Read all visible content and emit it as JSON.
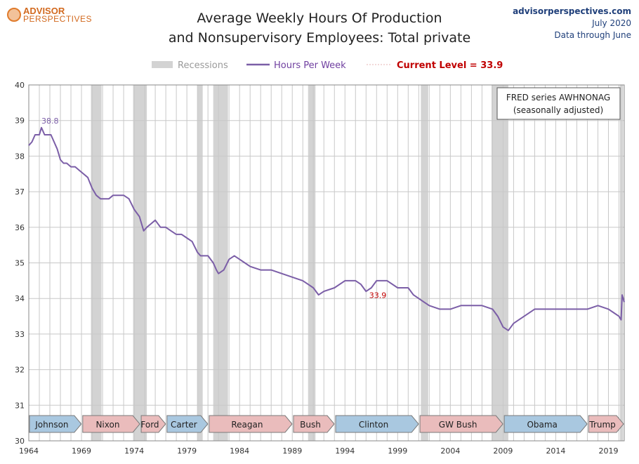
{
  "brand": {
    "line1": "ADVISOR",
    "line2": "PERSPECTIVES"
  },
  "header": {
    "title_line1": "Average Weekly Hours Of Production",
    "title_line2": "and Nonsupervisory Employees: Total private",
    "site": "advisorperspectives.com",
    "date": "July 2020",
    "data_through": "Data through June"
  },
  "legend": {
    "recessions": "Recessions",
    "series": "Hours Per Week",
    "current": "Current Level = 33.9"
  },
  "note": {
    "line1": "FRED series  AWHNONAG",
    "line2": "(seasonally adjusted)"
  },
  "colors": {
    "line": "#7b5ea7",
    "recession": "#d3d3d3",
    "current": "#c00000",
    "dem": "#a9c8e0",
    "rep": "#eabcbc",
    "grid": "#c8c8c8"
  },
  "chart_data": {
    "type": "line",
    "title": "Average Weekly Hours Of Production and Nonsupervisory Employees: Total private",
    "xlabel": "",
    "ylabel": "",
    "xlim": [
      1964,
      2020.5
    ],
    "ylim": [
      30,
      40
    ],
    "yticks": [
      30,
      31,
      32,
      33,
      34,
      35,
      36,
      37,
      38,
      39,
      40
    ],
    "xticks": [
      1964,
      1969,
      1974,
      1979,
      1984,
      1989,
      1994,
      1999,
      2004,
      2009,
      2014,
      2019
    ],
    "grid": true,
    "annotations": [
      {
        "text": "38.8",
        "x": 1965.2,
        "y": 38.8
      },
      {
        "text": "33.9",
        "x": 1996.3,
        "y": 33.9
      }
    ],
    "series": [
      {
        "name": "Hours Per Week",
        "x": [
          1964.0,
          1964.3,
          1964.6,
          1965.0,
          1965.2,
          1965.5,
          1965.8,
          1966.1,
          1966.4,
          1966.7,
          1967.0,
          1967.3,
          1967.6,
          1968.0,
          1968.4,
          1968.8,
          1969.2,
          1969.6,
          1970.0,
          1970.4,
          1970.8,
          1971.2,
          1971.6,
          1972.0,
          1972.5,
          1973.0,
          1973.5,
          1974.0,
          1974.5,
          1974.9,
          1975.2,
          1975.6,
          1976.0,
          1976.5,
          1977.0,
          1977.5,
          1978.0,
          1978.5,
          1979.0,
          1979.5,
          1980.0,
          1980.3,
          1980.6,
          1981.0,
          1981.5,
          1981.8,
          1982.0,
          1982.5,
          1983.0,
          1983.5,
          1984.0,
          1984.5,
          1985.0,
          1986.0,
          1987.0,
          1988.0,
          1989.0,
          1990.0,
          1990.5,
          1991.0,
          1991.5,
          1992.0,
          1993.0,
          1994.0,
          1995.0,
          1995.5,
          1996.0,
          1996.5,
          1997.0,
          1998.0,
          1999.0,
          2000.0,
          2000.5,
          2001.0,
          2001.5,
          2002.0,
          2003.0,
          2003.5,
          2004.0,
          2005.0,
          2006.0,
          2007.0,
          2008.0,
          2008.5,
          2009.0,
          2009.5,
          2010.0,
          2010.5,
          2011.0,
          2012.0,
          2013.0,
          2014.0,
          2015.0,
          2016.0,
          2017.0,
          2018.0,
          2019.0,
          2019.5,
          2020.0,
          2020.2,
          2020.3,
          2020.5
        ],
        "y": [
          38.3,
          38.4,
          38.6,
          38.6,
          38.8,
          38.6,
          38.6,
          38.6,
          38.4,
          38.2,
          37.9,
          37.8,
          37.8,
          37.7,
          37.7,
          37.6,
          37.5,
          37.4,
          37.1,
          36.9,
          36.8,
          36.8,
          36.8,
          36.9,
          36.9,
          36.9,
          36.8,
          36.5,
          36.3,
          35.9,
          36.0,
          36.1,
          36.2,
          36.0,
          36.0,
          35.9,
          35.8,
          35.8,
          35.7,
          35.6,
          35.3,
          35.2,
          35.2,
          35.2,
          35.0,
          34.8,
          34.7,
          34.8,
          35.1,
          35.2,
          35.1,
          35.0,
          34.9,
          34.8,
          34.8,
          34.7,
          34.6,
          34.5,
          34.4,
          34.3,
          34.1,
          34.2,
          34.3,
          34.5,
          34.5,
          34.4,
          34.2,
          34.3,
          34.5,
          34.5,
          34.3,
          34.3,
          34.1,
          34.0,
          33.9,
          33.8,
          33.7,
          33.7,
          33.7,
          33.8,
          33.8,
          33.8,
          33.7,
          33.5,
          33.2,
          33.1,
          33.3,
          33.4,
          33.5,
          33.7,
          33.7,
          33.7,
          33.7,
          33.7,
          33.7,
          33.8,
          33.7,
          33.6,
          33.5,
          33.4,
          34.1,
          33.9
        ]
      }
    ],
    "recessions": [
      [
        1969.9,
        1970.9
      ],
      [
        1973.9,
        1975.2
      ],
      [
        1980.0,
        1980.5
      ],
      [
        1981.5,
        1982.9
      ],
      [
        1990.5,
        1991.2
      ],
      [
        2001.2,
        2001.9
      ],
      [
        2007.9,
        2009.5
      ],
      [
        2020.1,
        2020.4
      ]
    ],
    "presidents": [
      {
        "name": "Johnson",
        "start": 1964.0,
        "end": 1969.05,
        "party": "D"
      },
      {
        "name": "Nixon",
        "start": 1969.05,
        "end": 1974.6,
        "party": "R"
      },
      {
        "name": "Ford",
        "start": 1974.6,
        "end": 1977.05,
        "party": "R"
      },
      {
        "name": "Carter",
        "start": 1977.05,
        "end": 1981.05,
        "party": "D"
      },
      {
        "name": "Reagan",
        "start": 1981.05,
        "end": 1989.05,
        "party": "R"
      },
      {
        "name": "Bush",
        "start": 1989.05,
        "end": 1993.05,
        "party": "R"
      },
      {
        "name": "Clinton",
        "start": 1993.05,
        "end": 2001.05,
        "party": "D"
      },
      {
        "name": "GW Bush",
        "start": 2001.05,
        "end": 2009.05,
        "party": "R"
      },
      {
        "name": "Obama",
        "start": 2009.05,
        "end": 2017.05,
        "party": "D"
      },
      {
        "name": "Trump",
        "start": 2017.05,
        "end": 2020.5,
        "party": "R"
      }
    ]
  }
}
